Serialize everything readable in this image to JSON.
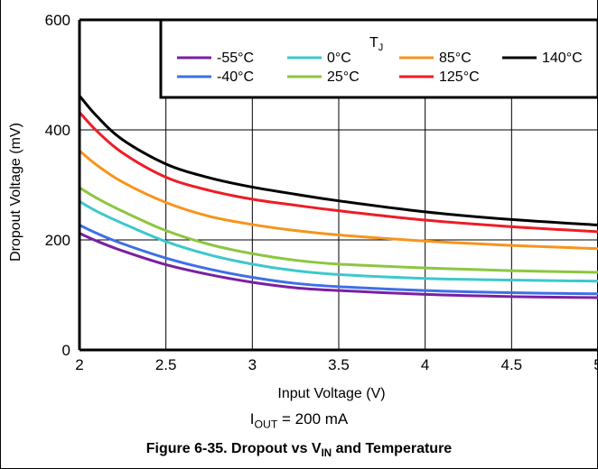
{
  "chart_data": {
    "type": "line",
    "xlabel": "Input Voltage (V)",
    "ylabel": "Dropout Voltage (mV)",
    "xlim": [
      2,
      5
    ],
    "ylim": [
      0,
      600
    ],
    "xticks": [
      "2",
      "2.5",
      "3",
      "3.5",
      "4",
      "4.5",
      "5"
    ],
    "yticks": [
      "0",
      "200",
      "400",
      "600"
    ],
    "grid": true,
    "legend_title": "T",
    "legend_title_sub": "J",
    "legend_placement": "top-right",
    "x": [
      2.0,
      2.1,
      2.25,
      2.5,
      2.75,
      3.0,
      3.25,
      3.5,
      4.0,
      4.5,
      5.0
    ],
    "series": [
      {
        "name": "-55°C",
        "color": "#7B1FA2",
        "values": [
          212,
          198,
          180,
          155,
          137,
          123,
          113,
          108,
          101,
          97,
          95
        ]
      },
      {
        "name": "-40°C",
        "color": "#3F6FE8",
        "values": [
          227,
          212,
          193,
          167,
          147,
          132,
          121,
          115,
          108,
          104,
          102
        ]
      },
      {
        "name": "0°C",
        "color": "#3CC8CC",
        "values": [
          270,
          252,
          230,
          197,
          173,
          156,
          144,
          137,
          130,
          127,
          125
        ]
      },
      {
        "name": "25°C",
        "color": "#8CC63F",
        "values": [
          295,
          276,
          252,
          217,
          192,
          175,
          163,
          156,
          149,
          144,
          141
        ]
      },
      {
        "name": "85°C",
        "color": "#F7941D",
        "values": [
          362,
          336,
          305,
          268,
          243,
          228,
          217,
          209,
          198,
          190,
          184
        ]
      },
      {
        "name": "125°C",
        "color": "#EE1C25",
        "values": [
          432,
          398,
          358,
          314,
          290,
          274,
          263,
          253,
          236,
          224,
          215
        ]
      },
      {
        "name": "140°C",
        "color": "#000000",
        "values": [
          462,
          425,
          382,
          338,
          313,
          296,
          283,
          271,
          251,
          237,
          227
        ]
      }
    ]
  },
  "conditions": {
    "prefix": "I",
    "sub": "OUT",
    "suffix": " = 200 mA"
  },
  "caption": {
    "prefix": "Figure 6-35. Dropout vs V",
    "sub": "IN",
    "suffix": " and Temperature"
  }
}
